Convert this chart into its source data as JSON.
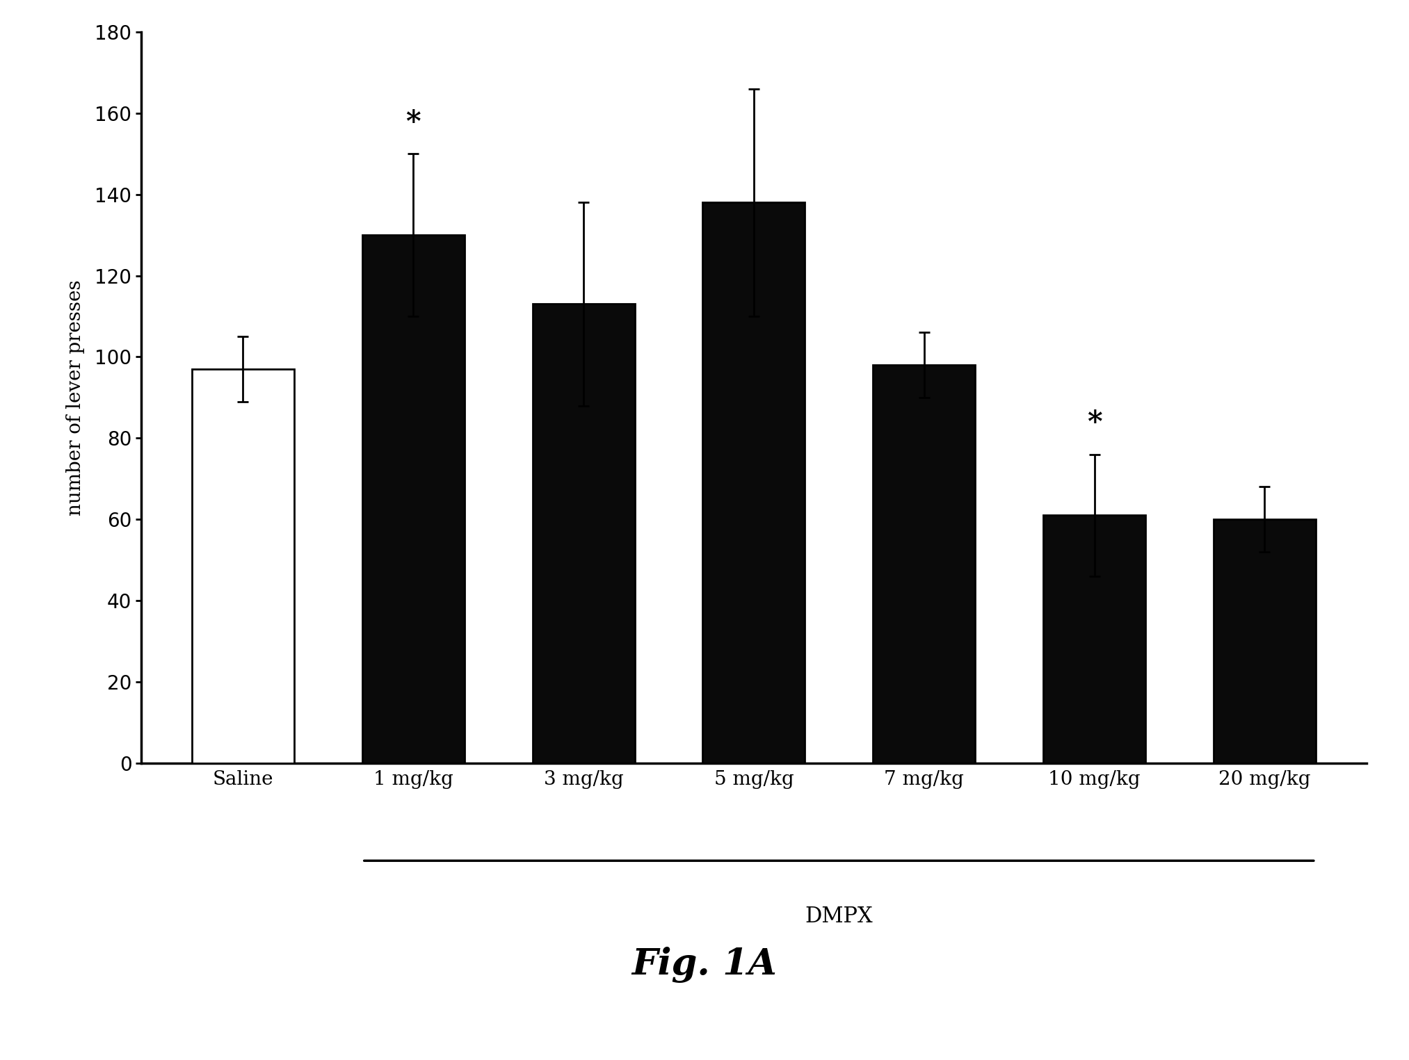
{
  "categories": [
    "Saline",
    "1 mg/kg",
    "3 mg/kg",
    "5 mg/kg",
    "7 mg/kg",
    "10 mg/kg",
    "20 mg/kg"
  ],
  "values": [
    97,
    130,
    113,
    138,
    98,
    61,
    60
  ],
  "errors": [
    8,
    20,
    25,
    28,
    8,
    15,
    8
  ],
  "bar_colors": [
    "#ffffff",
    "#0a0a0a",
    "#0a0a0a",
    "#0a0a0a",
    "#0a0a0a",
    "#0a0a0a",
    "#0a0a0a"
  ],
  "bar_edge_colors": [
    "#000000",
    "#000000",
    "#000000",
    "#000000",
    "#000000",
    "#000000",
    "#000000"
  ],
  "ylabel": "number of lever presses",
  "xlabel_dmpx": "DMPX",
  "ylim": [
    0,
    180
  ],
  "yticks": [
    0,
    20,
    40,
    60,
    80,
    100,
    120,
    140,
    160,
    180
  ],
  "sig_indices": [
    1,
    5
  ],
  "fig_label": "Fig. 1A",
  "background_color": "#ffffff",
  "bar_width": 0.6,
  "linewidth": 2.0,
  "capsize": 6,
  "error_linewidth": 2.0
}
